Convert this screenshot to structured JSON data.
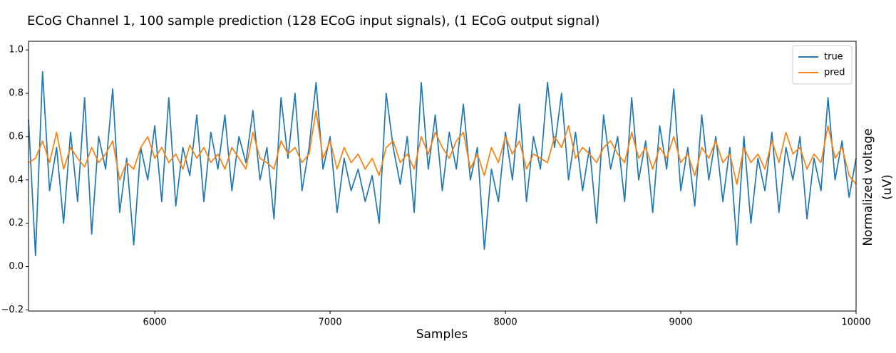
{
  "chart_data": {
    "type": "line",
    "title": "ECoG Channel 1, 100 sample prediction (128 ECoG input signals), (1 ECoG output signal)",
    "xlabel": "Samples",
    "ylabel": [
      "Normalized voltage",
      "(uV)"
    ],
    "x": [
      5280,
      5320,
      5360,
      5400,
      5440,
      5480,
      5520,
      5560,
      5600,
      5640,
      5680,
      5720,
      5760,
      5800,
      5840,
      5880,
      5920,
      5960,
      6000,
      6040,
      6080,
      6120,
      6160,
      6200,
      6240,
      6280,
      6320,
      6360,
      6400,
      6440,
      6480,
      6520,
      6560,
      6600,
      6640,
      6680,
      6720,
      6760,
      6800,
      6840,
      6880,
      6920,
      6960,
      7000,
      7040,
      7080,
      7120,
      7160,
      7200,
      7240,
      7280,
      7320,
      7360,
      7400,
      7440,
      7480,
      7520,
      7560,
      7600,
      7640,
      7680,
      7720,
      7760,
      7800,
      7840,
      7880,
      7920,
      7960,
      8000,
      8040,
      8080,
      8120,
      8160,
      8200,
      8240,
      8280,
      8320,
      8360,
      8400,
      8440,
      8480,
      8520,
      8560,
      8600,
      8640,
      8680,
      8720,
      8760,
      8800,
      8840,
      8880,
      8920,
      8960,
      9000,
      9040,
      9080,
      9120,
      9160,
      9200,
      9240,
      9280,
      9320,
      9360,
      9400,
      9440,
      9480,
      9520,
      9560,
      9600,
      9640,
      9680,
      9720,
      9760,
      9800,
      9840,
      9880,
      9920,
      9960,
      10000
    ],
    "series": [
      {
        "name": "true",
        "color": "#1f77b4",
        "values": [
          0.68,
          0.05,
          0.9,
          0.35,
          0.55,
          0.2,
          0.62,
          0.3,
          0.78,
          0.15,
          0.6,
          0.45,
          0.82,
          0.25,
          0.5,
          0.1,
          0.55,
          0.4,
          0.65,
          0.3,
          0.78,
          0.28,
          0.55,
          0.42,
          0.7,
          0.3,
          0.62,
          0.45,
          0.7,
          0.35,
          0.6,
          0.48,
          0.72,
          0.4,
          0.55,
          0.22,
          0.78,
          0.5,
          0.8,
          0.35,
          0.55,
          0.85,
          0.45,
          0.6,
          0.25,
          0.5,
          0.35,
          0.45,
          0.3,
          0.42,
          0.2,
          0.8,
          0.55,
          0.38,
          0.6,
          0.25,
          0.85,
          0.45,
          0.7,
          0.35,
          0.62,
          0.45,
          0.75,
          0.4,
          0.55,
          0.08,
          0.45,
          0.3,
          0.62,
          0.4,
          0.75,
          0.3,
          0.6,
          0.45,
          0.85,
          0.55,
          0.8,
          0.4,
          0.62,
          0.35,
          0.55,
          0.2,
          0.7,
          0.45,
          0.6,
          0.3,
          0.78,
          0.4,
          0.58,
          0.25,
          0.65,
          0.45,
          0.82,
          0.35,
          0.55,
          0.28,
          0.7,
          0.4,
          0.6,
          0.3,
          0.55,
          0.1,
          0.6,
          0.2,
          0.5,
          0.35,
          0.62,
          0.25,
          0.55,
          0.4,
          0.6,
          0.22,
          0.5,
          0.35,
          0.78,
          0.4,
          0.58,
          0.32,
          0.5
        ]
      },
      {
        "name": "pred",
        "color": "#ff7f0e",
        "values": [
          0.48,
          0.5,
          0.58,
          0.48,
          0.62,
          0.45,
          0.55,
          0.5,
          0.46,
          0.55,
          0.48,
          0.52,
          0.58,
          0.4,
          0.48,
          0.45,
          0.55,
          0.6,
          0.5,
          0.55,
          0.48,
          0.52,
          0.45,
          0.56,
          0.5,
          0.55,
          0.48,
          0.52,
          0.45,
          0.55,
          0.5,
          0.45,
          0.62,
          0.5,
          0.48,
          0.45,
          0.58,
          0.52,
          0.55,
          0.48,
          0.52,
          0.72,
          0.5,
          0.58,
          0.45,
          0.55,
          0.48,
          0.52,
          0.45,
          0.5,
          0.42,
          0.55,
          0.58,
          0.48,
          0.52,
          0.45,
          0.6,
          0.52,
          0.62,
          0.55,
          0.5,
          0.58,
          0.62,
          0.45,
          0.52,
          0.42,
          0.55,
          0.48,
          0.6,
          0.52,
          0.58,
          0.45,
          0.52,
          0.5,
          0.48,
          0.6,
          0.55,
          0.65,
          0.5,
          0.55,
          0.52,
          0.48,
          0.55,
          0.58,
          0.52,
          0.48,
          0.62,
          0.5,
          0.55,
          0.45,
          0.55,
          0.5,
          0.6,
          0.48,
          0.52,
          0.42,
          0.55,
          0.5,
          0.58,
          0.48,
          0.52,
          0.38,
          0.55,
          0.48,
          0.52,
          0.45,
          0.58,
          0.48,
          0.62,
          0.52,
          0.55,
          0.45,
          0.52,
          0.48,
          0.65,
          0.5,
          0.55,
          0.42,
          0.38
        ]
      }
    ],
    "xlim": [
      5280,
      10000
    ],
    "xticks": [
      6000,
      7000,
      8000,
      9000,
      10000
    ],
    "ylim": [
      -0.205,
      1.04
    ],
    "yticks": [
      {
        "value": -0.2,
        "label": "−0.2"
      },
      {
        "value": 0,
        "label": "0.0"
      },
      0.2,
      0.4,
      0.6,
      0.8,
      {
        "value": 1,
        "label": "1.0"
      }
    ],
    "legend": "upper right"
  }
}
